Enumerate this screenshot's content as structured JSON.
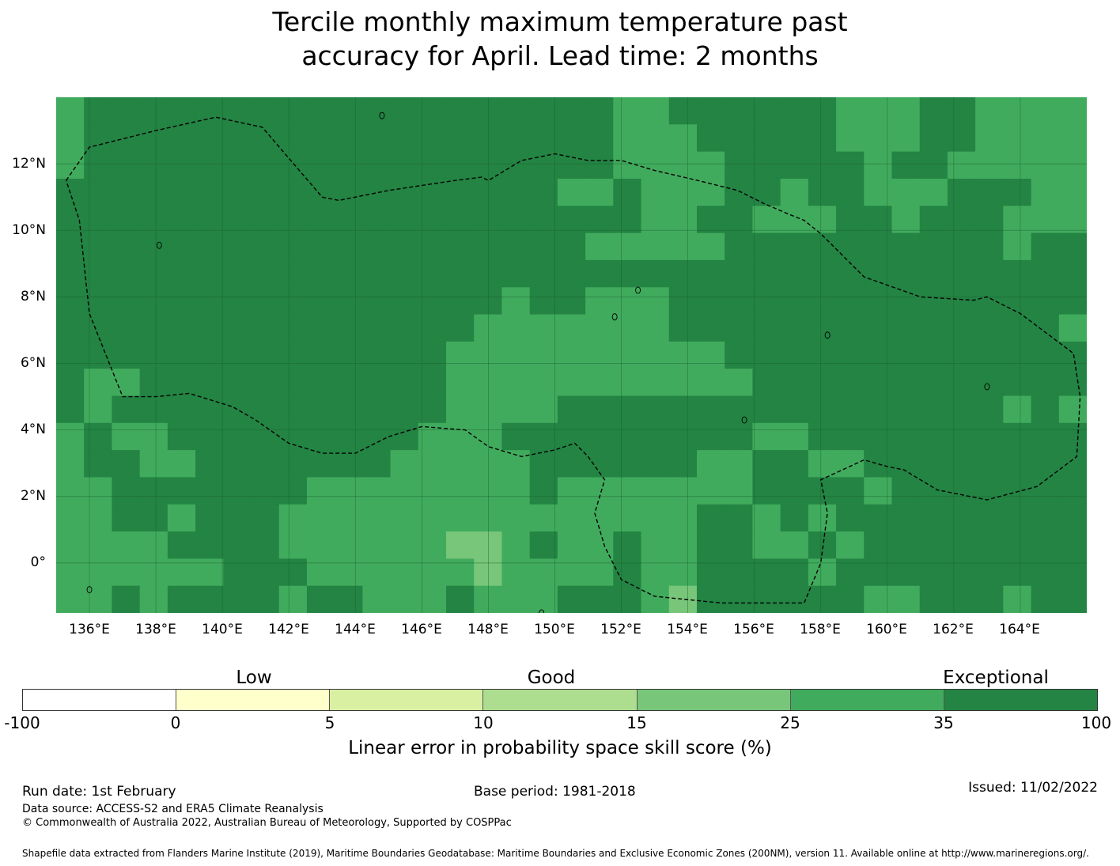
{
  "title_lines": [
    "Tercile monthly maximum temperature past",
    "accuracy for April. Lead time: 2 months"
  ],
  "map": {
    "region": "Federated States of Micronesia EEZ",
    "lon_ticks": [
      "136°E",
      "138°E",
      "140°E",
      "142°E",
      "144°E",
      "146°E",
      "148°E",
      "150°E",
      "152°E",
      "154°E",
      "156°E",
      "158°E",
      "160°E",
      "162°E",
      "164°E"
    ],
    "lat_ticks": [
      "12°N",
      "10°N",
      "8°N",
      "6°N",
      "4°N",
      "2°N",
      "0°"
    ],
    "lon_range": [
      135.0,
      166.0
    ],
    "lat_range": [
      -1.5,
      14.0
    ],
    "boundary": [
      [
        135.3,
        11.5
      ],
      [
        136.0,
        12.5
      ],
      [
        138.0,
        13.0
      ],
      [
        139.8,
        13.4
      ],
      [
        141.2,
        13.1
      ],
      [
        143.0,
        11.0
      ],
      [
        143.5,
        10.9
      ],
      [
        145.0,
        11.2
      ],
      [
        147.0,
        11.5
      ],
      [
        147.8,
        11.6
      ],
      [
        148.0,
        11.5
      ],
      [
        149.0,
        12.1
      ],
      [
        150.0,
        12.3
      ],
      [
        151.0,
        12.1
      ],
      [
        152.0,
        12.1
      ],
      [
        153.0,
        11.8
      ],
      [
        154.3,
        11.5
      ],
      [
        155.5,
        11.2
      ],
      [
        156.3,
        10.8
      ],
      [
        157.0,
        10.5
      ],
      [
        157.5,
        10.3
      ],
      [
        158.0,
        9.9
      ],
      [
        159.3,
        8.6
      ],
      [
        161.0,
        8.0
      ],
      [
        162.6,
        7.9
      ],
      [
        163.0,
        8.0
      ],
      [
        164.0,
        7.5
      ],
      [
        165.6,
        6.3
      ],
      [
        165.8,
        5.0
      ],
      [
        165.7,
        3.2
      ],
      [
        164.5,
        2.3
      ],
      [
        163.0,
        1.9
      ],
      [
        161.5,
        2.2
      ],
      [
        160.5,
        2.8
      ],
      [
        160.0,
        2.9
      ],
      [
        159.3,
        3.1
      ],
      [
        158.0,
        2.5
      ],
      [
        158.2,
        1.5
      ],
      [
        158.0,
        0.0
      ],
      [
        157.5,
        -1.2
      ],
      [
        155.0,
        -1.2
      ],
      [
        153.0,
        -1.0
      ],
      [
        152.0,
        -0.5
      ],
      [
        151.5,
        0.5
      ],
      [
        151.2,
        1.5
      ],
      [
        151.5,
        2.5
      ],
      [
        151.0,
        3.2
      ],
      [
        150.6,
        3.6
      ],
      [
        150.0,
        3.4
      ],
      [
        149.0,
        3.2
      ],
      [
        148.0,
        3.5
      ],
      [
        147.3,
        4.0
      ],
      [
        146.0,
        4.1
      ],
      [
        145.0,
        3.8
      ],
      [
        144.0,
        3.3
      ],
      [
        143.0,
        3.3
      ],
      [
        142.0,
        3.6
      ],
      [
        141.0,
        4.3
      ],
      [
        140.3,
        4.7
      ],
      [
        139.0,
        5.1
      ],
      [
        138.0,
        5.0
      ],
      [
        137.0,
        5.0
      ],
      [
        136.0,
        7.5
      ],
      [
        135.7,
        10.3
      ],
      [
        135.3,
        11.5
      ]
    ],
    "islands": [
      [
        144.8,
        13.45
      ],
      [
        138.1,
        9.55
      ],
      [
        151.8,
        7.4
      ],
      [
        158.2,
        6.85
      ],
      [
        152.5,
        8.2
      ],
      [
        155.7,
        4.3
      ],
      [
        163.0,
        5.3
      ],
      [
        149.6,
        -1.5
      ],
      [
        136.0,
        -0.8
      ]
    ],
    "grid_cols": 37,
    "grid_rows": 19,
    "grid": [
      "BDDDDDDDDDDDDDDDDDDDBBDDDDDDBBBDDBBBB",
      "BDDDDDDDDDDDDDDDDDDDBBBDDDDDBBBDDBBBB",
      "BDDDDDDDDDDDDDDDDDDDBBBBDDDDDBDDBBBBB",
      "DDDDDDDDDDDDDDDDDDBBDBBBDDBDDBBBDDDBB",
      "DDDDDDDDDDDDDDDDDDDDDBBDDBBBDDBDDDBBB",
      "DDDDDDDDDDDDDDDDDDDBBBBBDDDDDDDDDDBDD",
      "DDDDDDDDDDDDDDDDDDDDDDDDDDDDDDDDDDDDD",
      "DDDDDDDDDDDDDDDDBDDBBBDDDDDDDDDDDDDDD",
      "DDDDDDDDDDDDDDDBBBBBBBDDDDDDDDDDDDDDB",
      "DDDDDDDDDDDDDDBBBBBBBBBBDDDDDDDDDDDDD",
      "DBBDDDDDDDDDDDBBBBBBBBBBBDDDDDDDDDDDD",
      "DBDDDDDDDDDDDDBBBBDDDDDDDDDDDDDDDDBDB",
      "BDBBDDDDDDDDDBBBDDDDDDDDDBBDDDDDDDDDD",
      "BDDBBDDDDDDDBBBBBDDDDDDBBDDBBDDDDDDDD",
      "BBDDDDDDDBBBBBBBBDBBBBBBBDDDDBDDDDDDD",
      "BBDDBDDDBBBBBBBBBBBBBBBDDBDBDDDDDDDDD",
      "BBBBDDDDBBBBBBCCBDBBDBBDDBBDBDDDDDDDD",
      "BBBBBBDDDBBBBBBCBBBBDBBDDDDBDDDDDDDDD",
      "BBDBDDDDBDDBBBDBBBDDDBCDDDDDDBBDDDBDD"
    ],
    "cell_colors": {
      "D": "#238443",
      "B": "#41ab5d",
      "C": "#78c679"
    }
  },
  "legend": {
    "categories": [
      "Low",
      "Good",
      "Exceptional"
    ],
    "segment_colors": [
      "#ffffff",
      "#ffffcc",
      "#d9f0a3",
      "#addd8e",
      "#78c679",
      "#41ab5d",
      "#238443"
    ],
    "ticks": [
      "-100",
      "0",
      "5",
      "10",
      "15",
      "25",
      "35",
      "100"
    ],
    "label": "Linear error in probability space skill score (%)"
  },
  "footer": {
    "run_date": "Run date: 1st February",
    "base_period": "Base period: 1981-2018",
    "issued": "Issued: 11/02/2022",
    "data_source": "Data source: ACCESS-S2 and ERA5 Climate Reanalysis",
    "copyright": "© Commonwealth of Australia 2022, Australian Bureau of Meteorology, Supported by COSPPac",
    "shapefile": "Shapefile data extracted from Flanders Marine Institute (2019), Maritime Boundaries Geodatabase: Maritime Boundaries and Exclusive Economic Zones (200NM), version 11. Available online at http://www.marineregions.org/."
  }
}
